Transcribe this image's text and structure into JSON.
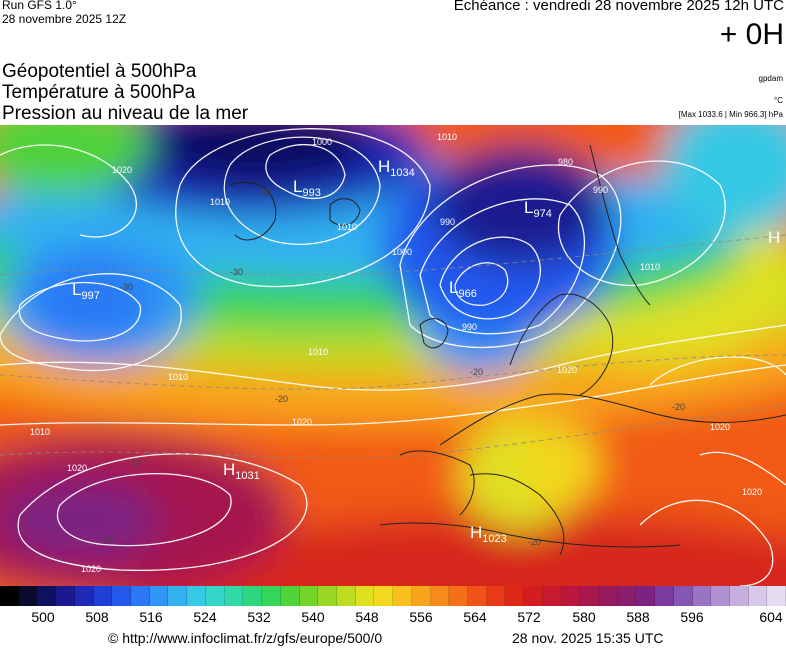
{
  "header": {
    "run_title": "Run GFS 1.0°",
    "run_date": "28 novembre 2025 12Z",
    "echeance": "Echéance : vendredi 28 novembre 2025 12h UTC",
    "offset": "+ 0H"
  },
  "layers": {
    "geopotential": "Géopotentiel à 500hPa",
    "temperature": "Température à 500hPa",
    "pressure": "Pression au niveau de la mer",
    "unit_geopotential": "gpdam",
    "unit_temperature": "°C",
    "max_min": "[Max 1033.6 | Min 966.3] hPa"
  },
  "pressure_centers": [
    {
      "type": "L",
      "value": "993"
    },
    {
      "type": "H",
      "value": "1034"
    },
    {
      "type": "L",
      "value": "974"
    },
    {
      "type": "L",
      "value": "997"
    },
    {
      "type": "L",
      "value": "966"
    },
    {
      "type": "H",
      "value": "1031"
    },
    {
      "type": "H",
      "value": "1023"
    },
    {
      "type": "H",
      "value": ""
    }
  ],
  "isobar_labels": [
    "1010",
    "1000",
    "1010",
    "1020",
    "1010",
    "990",
    "980",
    "990",
    "1000",
    "990",
    "1010",
    "1010",
    "1010",
    "1020",
    "1020",
    "1020",
    "1010",
    "1020",
    "1020",
    "1020"
  ],
  "temperature_labels": [
    "-40",
    "-30",
    "-30",
    "-20",
    "-20",
    "-20",
    "-10",
    "-20",
    "-20"
  ],
  "colorbar": {
    "ticks": [
      "500",
      "508",
      "516",
      "524",
      "532",
      "540",
      "548",
      "556",
      "564",
      "572",
      "580",
      "588",
      "596",
      "604"
    ],
    "colors": [
      "#000000",
      "#0a0a2e",
      "#101060",
      "#1a1a90",
      "#1e2ab8",
      "#1f3fd9",
      "#2358ef",
      "#2a78f5",
      "#2f96f5",
      "#33b2f0",
      "#36c8e4",
      "#33d6c8",
      "#30d9a5",
      "#2ed67e",
      "#35d45a",
      "#4fd23a",
      "#73d42a",
      "#98d825",
      "#bddc22",
      "#dfe020",
      "#f2d81f",
      "#f8c01d",
      "#f9a51c",
      "#f88a1b",
      "#f56e1a",
      "#f05218",
      "#e83a17",
      "#de2716",
      "#d41d1e",
      "#c81a2e",
      "#b9173e",
      "#a8184e",
      "#981a5e",
      "#8a1d6e",
      "#7d2282",
      "#7a3aa0",
      "#8656b4",
      "#9a74c4",
      "#b092d2",
      "#c6b0e0",
      "#d8c8ea",
      "#e6dcf2"
    ]
  },
  "footer": {
    "credit": "© http://www.infoclimat.fr/z/gfs/europe/500/0",
    "stamp": "28 nov. 2025 15:35 UTC"
  }
}
